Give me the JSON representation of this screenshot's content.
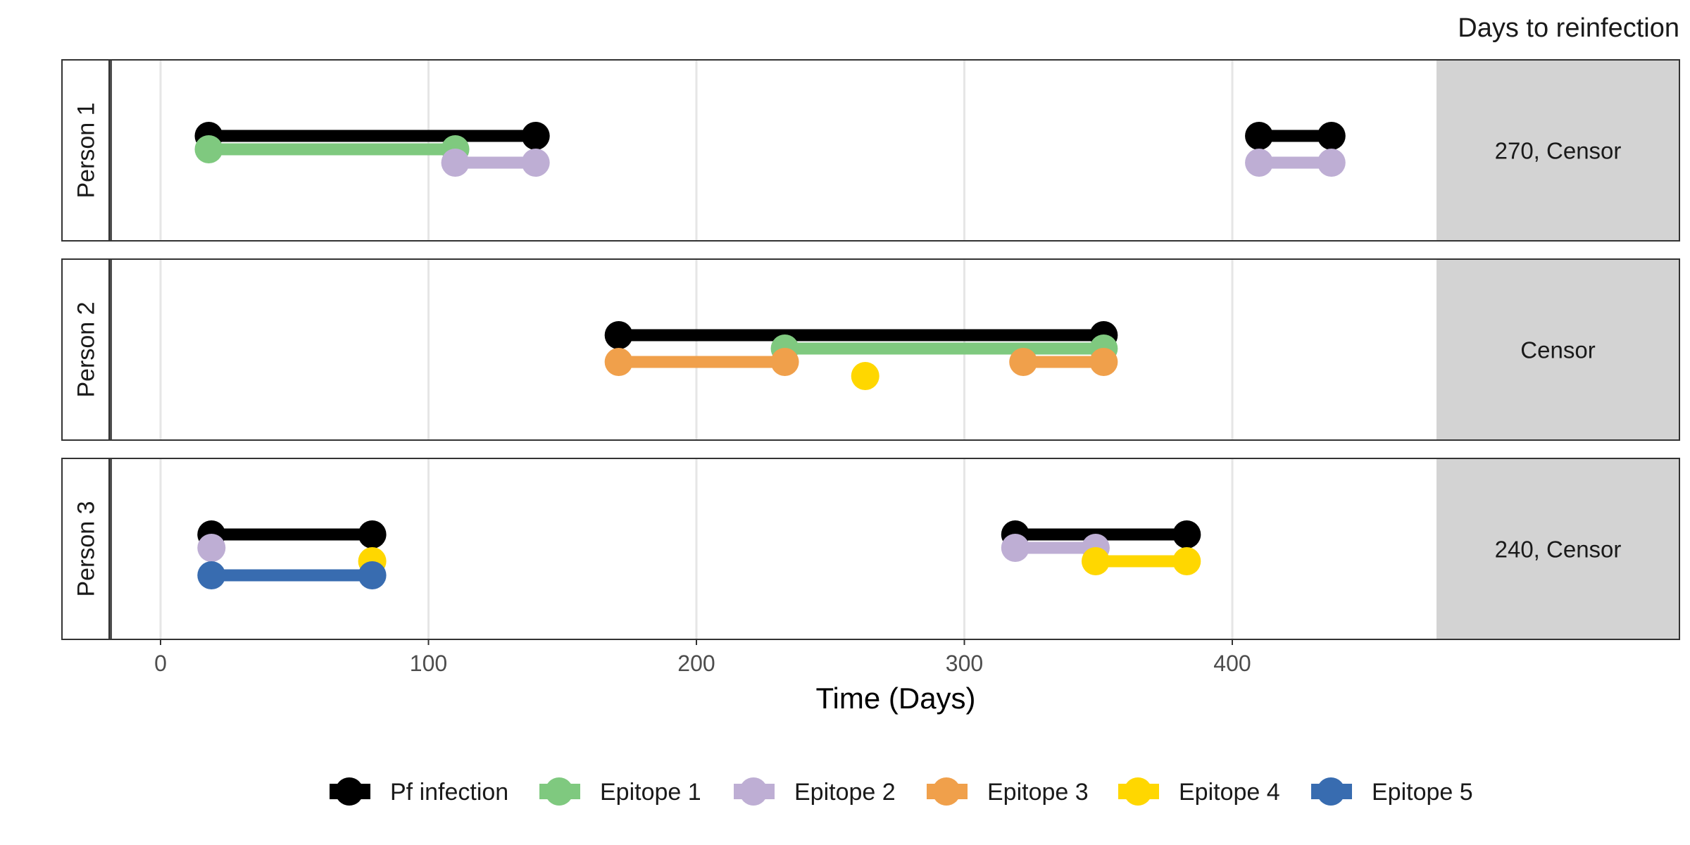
{
  "chart_data": {
    "type": "line",
    "xlabel": "Time (Days)",
    "side_title": "Days to reinfection",
    "x_ticks": [
      0,
      100,
      200,
      300,
      400
    ],
    "xlim": [
      -37,
      480
    ],
    "grid": true,
    "legend_position": "bottom",
    "colors": {
      "Pf infection": "#000000",
      "Epitope 1": "#7fc97f",
      "Epitope 2": "#beaed4",
      "Epitope 3": "#f0a04b",
      "Epitope 4": "#ffd700",
      "Epitope 5": "#386cb0"
    },
    "legend": [
      "Pf infection",
      "Epitope 1",
      "Epitope 2",
      "Epitope 3",
      "Epitope 4",
      "Epitope 5"
    ],
    "panels": [
      {
        "label": "Person 1",
        "annotation": "270, Censor",
        "series": [
          {
            "name": "Pf infection",
            "level": 0,
            "segments": [
              [
                18,
                140
              ],
              [
                410,
                437
              ]
            ],
            "points": []
          },
          {
            "name": "Epitope 1",
            "level": 1,
            "segments": [
              [
                18,
                110
              ]
            ],
            "points": []
          },
          {
            "name": "Epitope 2",
            "level": 2,
            "segments": [
              [
                110,
                140
              ],
              [
                410,
                437
              ]
            ],
            "points": []
          }
        ]
      },
      {
        "label": "Person 2",
        "annotation": "Censor",
        "series": [
          {
            "name": "Pf infection",
            "level": 0,
            "segments": [
              [
                171,
                352
              ]
            ],
            "points": []
          },
          {
            "name": "Epitope 1",
            "level": 1,
            "segments": [
              [
                233,
                352
              ]
            ],
            "points": []
          },
          {
            "name": "Epitope 3",
            "level": 2,
            "segments": [
              [
                171,
                233
              ],
              [
                322,
                352
              ]
            ],
            "points": []
          },
          {
            "name": "Epitope 4",
            "level": 3,
            "segments": [],
            "points": [
              263
            ]
          }
        ]
      },
      {
        "label": "Person 3",
        "annotation": "240, Censor",
        "series": [
          {
            "name": "Pf infection",
            "level": 0,
            "segments": [
              [
                19,
                79
              ],
              [
                319,
                383
              ]
            ],
            "points": []
          },
          {
            "name": "Epitope 2",
            "level": 1,
            "segments": [
              [
                319,
                349
              ]
            ],
            "points": [
              19
            ]
          },
          {
            "name": "Epitope 4",
            "level": 2,
            "segments": [
              [
                349,
                383
              ]
            ],
            "points": [
              79
            ]
          },
          {
            "name": "Epitope 5",
            "level": 3,
            "segments": [
              [
                19,
                79
              ]
            ],
            "points": []
          }
        ]
      }
    ]
  }
}
